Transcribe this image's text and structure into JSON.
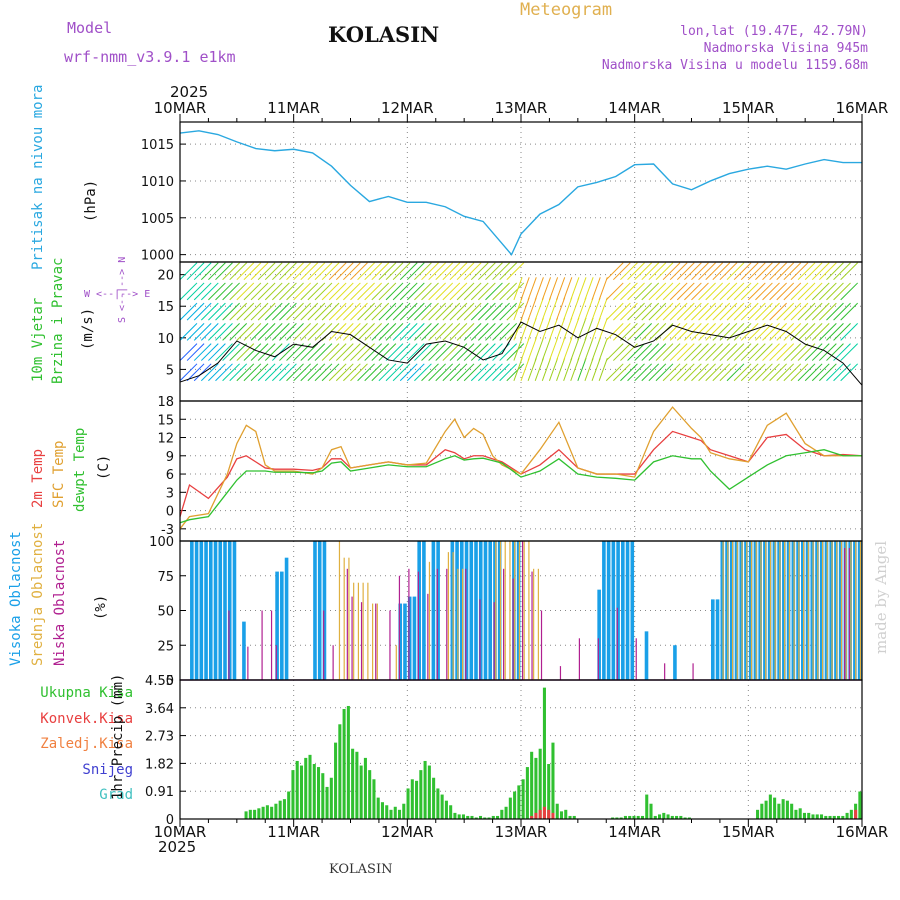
{
  "header": {
    "model_label": "Model",
    "model_name": "wrf-nmm_v3.9.1 e1km",
    "location": "KOLASIN",
    "product": "Meteogram",
    "lonlat": "lon,lat (19.47E, 42.79N)",
    "elevation": "Nadmorska Visina 945m",
    "model_elevation": "Nadmorska Visina u modelu 1159.68m"
  },
  "time_axis": {
    "year": "2025",
    "labels": [
      "10MAR",
      "11MAR",
      "12MAR",
      "13MAR",
      "14MAR",
      "15MAR",
      "16MAR"
    ]
  },
  "footer": {
    "station": "KOLASIN",
    "credit": "made by Angel"
  },
  "colors": {
    "pressure": "#2aa8e0",
    "temp2m": "#e84040",
    "sfc_temp": "#e0a030",
    "dewpt": "#30c030",
    "high_cloud": "#1aa0e8",
    "mid_cloud": "#e0b040",
    "low_cloud": "#b02090",
    "total_precip": "#30c030",
    "conv_precip": "#e84040"
  },
  "panels": {
    "pressure": {
      "label": "Pritisak na nivou mora",
      "unit": "(hPa)"
    },
    "wind": {
      "label1": "10m Vjetar",
      "label2": "Brzina i Pravac",
      "unit": "(m/s)",
      "compass_ns": "S <--|--> N",
      "compass_we": "W <--|--> E"
    },
    "temp": {
      "label1": "2m Temp",
      "label2": "SFC Temp",
      "label3": "dewpt Temp",
      "unit": "(C)"
    },
    "cloud": {
      "label1": "Visoka Oblacnost",
      "label2": "Srednja Oblacnost",
      "label3": "Niska Oblacnost",
      "unit": "(%)"
    },
    "precip": {
      "legend": [
        "Ukupna Kisa",
        "Konvek.Kisa",
        "Zaledj.Kisa",
        "Snijeg",
        "Grad"
      ],
      "legend_colors": [
        "#30c030",
        "#e84040",
        "#f08040",
        "#4040d0",
        "#40c0c0"
      ],
      "ylabel": "1hr Precip (mm)"
    }
  },
  "chart_data": [
    {
      "type": "line",
      "name": "pressure",
      "x_unit": "hours since 10MAR 00",
      "x": [
        0,
        4,
        8,
        12,
        16,
        20,
        24,
        28,
        32,
        36,
        40,
        44,
        48,
        52,
        56,
        60,
        64,
        68,
        70,
        72,
        76,
        80,
        84,
        88,
        92,
        96,
        100,
        104,
        108,
        112,
        116,
        120,
        124,
        128,
        132,
        136,
        140,
        144
      ],
      "values": [
        1016.5,
        1016.8,
        1016.3,
        1015.3,
        1014.4,
        1014.1,
        1014.3,
        1013.8,
        1012.0,
        1009.4,
        1007.2,
        1007.9,
        1007.1,
        1007.1,
        1006.5,
        1005.2,
        1004.5,
        1001.5,
        1000.0,
        1002.8,
        1005.5,
        1006.8,
        1009.2,
        1009.8,
        1010.6,
        1012.2,
        1012.3,
        1009.6,
        1008.8,
        1010.0,
        1011.0,
        1011.6,
        1012.0,
        1011.6,
        1012.3,
        1012.9,
        1012.5,
        1012.5
      ],
      "ylim": [
        999,
        1018
      ],
      "yticks": [
        1000,
        1005,
        1010,
        1015
      ]
    },
    {
      "type": "line",
      "name": "wind_speed",
      "x": [
        0,
        4,
        8,
        12,
        16,
        20,
        24,
        28,
        32,
        36,
        40,
        44,
        48,
        52,
        56,
        60,
        64,
        68,
        72,
        76,
        80,
        84,
        88,
        92,
        96,
        100,
        104,
        108,
        112,
        116,
        120,
        124,
        128,
        132,
        136,
        140,
        144
      ],
      "values": [
        3.0,
        4.0,
        6.0,
        9.5,
        8.0,
        7.0,
        9.0,
        8.5,
        11.0,
        10.5,
        8.5,
        6.5,
        6.0,
        9.0,
        9.5,
        8.5,
        6.5,
        7.5,
        12.5,
        11.0,
        12.0,
        10.0,
        11.5,
        10.5,
        8.5,
        9.5,
        12.0,
        11.0,
        10.5,
        10.0,
        11.0,
        12.0,
        11.0,
        9.0,
        8.0,
        6.0,
        2.5
      ],
      "ylim": [
        0,
        22
      ],
      "yticks": [
        5,
        10,
        15,
        20
      ]
    },
    {
      "type": "line",
      "name": "temperature",
      "x": [
        0,
        2,
        6,
        10,
        12,
        14,
        16,
        18,
        20,
        24,
        28,
        30,
        32,
        34,
        36,
        40,
        44,
        48,
        52,
        56,
        58,
        60,
        62,
        64,
        66,
        68,
        72,
        76,
        80,
        84,
        88,
        92,
        96,
        100,
        104,
        108,
        110,
        112,
        116,
        120,
        124,
        128,
        132,
        136,
        140,
        144
      ],
      "series": [
        {
          "name": "2m Temp",
          "values": [
            -1,
            4.2,
            2.0,
            5.5,
            8.5,
            9.0,
            8.0,
            7.0,
            6.8,
            6.8,
            6.6,
            7.0,
            8.5,
            8.5,
            7.0,
            7.5,
            8.0,
            7.5,
            7.5,
            10.0,
            9.5,
            8.5,
            9.0,
            9.0,
            8.5,
            8.0,
            6.0,
            7.5,
            10.0,
            7.0,
            6.0,
            6.0,
            6.0,
            10.0,
            13.0,
            12.0,
            11.5,
            10.0,
            9.0,
            8.0,
            12.0,
            12.5,
            10.0,
            9.0,
            9.2,
            9.0
          ]
        },
        {
          "name": "SFC Temp",
          "values": [
            -3,
            -1.0,
            -0.5,
            6.0,
            11.0,
            14.0,
            13.0,
            7.5,
            6.5,
            6.5,
            6.0,
            7.0,
            10.0,
            10.5,
            7.0,
            7.5,
            8.0,
            7.5,
            7.8,
            13.0,
            15.0,
            12.0,
            13.5,
            12.5,
            9.0,
            7.5,
            6.0,
            10.0,
            14.5,
            7.0,
            6.0,
            6.0,
            5.5,
            13.0,
            17.0,
            13.5,
            12.0,
            9.5,
            8.5,
            8.0,
            14.0,
            16.0,
            11.0,
            9.0,
            9.0,
            9.0
          ]
        },
        {
          "name": "dewpt Temp",
          "values": [
            -2,
            -1.5,
            -1.0,
            3.0,
            5.0,
            6.5,
            6.5,
            6.5,
            6.3,
            6.3,
            6.2,
            6.5,
            7.8,
            8.0,
            6.5,
            7.0,
            7.5,
            7.2,
            7.2,
            8.5,
            9.0,
            8.3,
            8.5,
            8.6,
            8.2,
            7.8,
            5.5,
            6.5,
            8.5,
            6.0,
            5.5,
            5.3,
            5.0,
            8.0,
            9.0,
            8.5,
            8.5,
            6.5,
            3.5,
            5.5,
            7.5,
            9.0,
            9.5,
            10.0,
            9.0,
            9.0
          ]
        }
      ],
      "ylim": [
        -5,
        18
      ],
      "yticks": [
        -3,
        0,
        3,
        6,
        9,
        12,
        15,
        18
      ]
    },
    {
      "type": "bar",
      "name": "cloud_cover",
      "ylim": [
        0,
        100
      ],
      "yticks": [
        0,
        25,
        50,
        75,
        100
      ],
      "series": [
        {
          "name": "Visoka Oblacnost",
          "segments": [
            [
              2,
              12,
              100
            ],
            [
              13,
              14,
              42
            ],
            [
              20,
              22,
              78
            ],
            [
              22,
              23,
              88
            ],
            [
              28,
              31,
              100
            ],
            [
              46,
              48,
              55
            ],
            [
              48,
              50,
              60
            ],
            [
              50,
              52,
              100
            ],
            [
              53,
              55,
              100
            ],
            [
              57,
              60,
              100
            ],
            [
              60,
              62,
              100
            ],
            [
              62,
              66,
              100
            ],
            [
              66,
              68,
              100
            ],
            [
              70,
              72,
              100
            ],
            [
              88,
              89,
              65
            ],
            [
              89,
              91,
              100
            ],
            [
              91,
              94,
              100
            ],
            [
              94,
              96,
              100
            ],
            [
              98,
              99,
              35
            ],
            [
              104,
              105,
              25
            ],
            [
              112,
              114,
              58
            ],
            [
              114,
              144,
              100
            ]
          ]
        },
        {
          "name": "Srednja Oblacnost",
          "segments": [
            [
              33,
              34,
              100
            ],
            [
              34,
              36,
              88
            ],
            [
              36,
              40,
              70
            ],
            [
              40,
              42,
              55
            ],
            [
              45,
              46,
              25
            ],
            [
              52,
              53,
              85
            ],
            [
              56,
              58,
              92
            ],
            [
              58,
              60,
              80
            ],
            [
              66,
              68,
              100
            ],
            [
              68,
              70,
              100
            ],
            [
              70,
              74,
              100
            ],
            [
              74,
              76,
              80
            ],
            [
              114,
              144,
              100
            ]
          ]
        },
        {
          "name": "Niska Oblacnost",
          "segments": [
            [
              10,
              11,
              50
            ],
            [
              14,
              15,
              24
            ],
            [
              17,
              18,
              50
            ],
            [
              19,
              20,
              50
            ],
            [
              20,
              21,
              25
            ],
            [
              30,
              31,
              50
            ],
            [
              32,
              33,
              25
            ],
            [
              35,
              36,
              80
            ],
            [
              36,
              37,
              60
            ],
            [
              38,
              39,
              56
            ],
            [
              41,
              42,
              55
            ],
            [
              44,
              45,
              50
            ],
            [
              46,
              47,
              75
            ],
            [
              48,
              49,
              80
            ],
            [
              50,
              51,
              78
            ],
            [
              52,
              53,
              62
            ],
            [
              54,
              55,
              80
            ],
            [
              56,
              57,
              80
            ],
            [
              60,
              61,
              80
            ],
            [
              63,
              64,
              58
            ],
            [
              66,
              67,
              56
            ],
            [
              68,
              69,
              80
            ],
            [
              70,
              71,
              73
            ],
            [
              72,
              73,
              100
            ],
            [
              74,
              75,
              78
            ],
            [
              76,
              77,
              50
            ],
            [
              80,
              81,
              10
            ],
            [
              84,
              85,
              30
            ],
            [
              88,
              89,
              30
            ],
            [
              92,
              93,
              52
            ],
            [
              96,
              97,
              30
            ],
            [
              102,
              103,
              12
            ],
            [
              108,
              109,
              12
            ],
            [
              140,
              142,
              95
            ]
          ]
        }
      ]
    },
    {
      "type": "bar",
      "name": "precipitation",
      "ylim": [
        0,
        4.55
      ],
      "yticks": [
        0,
        0.91,
        1.82,
        2.73,
        3.64,
        4.55
      ],
      "series": [
        {
          "name": "Ukupna Kisa",
          "values": [
            0,
            0,
            0,
            0,
            0,
            0,
            0,
            0,
            0,
            0,
            0,
            0,
            0,
            0,
            0,
            0.25,
            0.3,
            0.3,
            0.35,
            0.4,
            0.45,
            0.4,
            0.5,
            0.6,
            0.65,
            0.9,
            1.6,
            1.9,
            1.75,
            2.0,
            2.1,
            1.8,
            1.7,
            1.5,
            1.05,
            1.35,
            2.5,
            3.1,
            3.6,
            3.7,
            2.3,
            2.2,
            1.75,
            2.0,
            1.6,
            1.3,
            0.7,
            0.55,
            0.45,
            0.3,
            0.4,
            0.3,
            0.5,
            1.0,
            1.3,
            1.25,
            1.6,
            1.9,
            1.75,
            1.35,
            1.0,
            0.8,
            0.6,
            0.45,
            0.2,
            0.15,
            0.15,
            0.1,
            0.1,
            0.05,
            0.1,
            0.05,
            0.05,
            0.1,
            0.1,
            0.3,
            0.4,
            0.7,
            0.9,
            1.1,
            1.3,
            1.7,
            2.2,
            2.0,
            2.3,
            4.3,
            1.8,
            2.5,
            0.5,
            0.25,
            0.3,
            0.1,
            0.1,
            0,
            0,
            0,
            0,
            0,
            0,
            0,
            0,
            0.05,
            0.05,
            0.05,
            0.1,
            0.1,
            0.1,
            0.1,
            0.1,
            0.8,
            0.5,
            0.1,
            0.15,
            0.2,
            0.15,
            0.1,
            0.1,
            0.1,
            0.05,
            0.05,
            0,
            0,
            0,
            0,
            0,
            0,
            0,
            0,
            0,
            0,
            0,
            0,
            0,
            0,
            0,
            0.3,
            0.5,
            0.6,
            0.8,
            0.7,
            0.5,
            0.65,
            0.6,
            0.5,
            0.3,
            0.35,
            0.2,
            0.2,
            0.15,
            0.15,
            0.15,
            0.1,
            0.1,
            0.1,
            0.1,
            0.1,
            0.2,
            0.3,
            0.5,
            0.9
          ]
        },
        {
          "name": "Konvek.Kisa",
          "values": [
            0,
            0,
            0,
            0,
            0,
            0,
            0,
            0,
            0,
            0,
            0,
            0,
            0,
            0,
            0,
            0,
            0,
            0,
            0,
            0,
            0,
            0,
            0,
            0,
            0,
            0,
            0,
            0,
            0,
            0,
            0,
            0,
            0,
            0,
            0,
            0,
            0,
            0,
            0,
            0,
            0,
            0,
            0,
            0,
            0,
            0,
            0,
            0,
            0,
            0,
            0,
            0,
            0,
            0,
            0,
            0,
            0,
            0,
            0,
            0,
            0,
            0,
            0,
            0,
            0,
            0,
            0,
            0,
            0,
            0,
            0,
            0,
            0,
            0,
            0,
            0,
            0,
            0,
            0,
            0,
            0,
            0,
            0.1,
            0.2,
            0.3,
            0.4,
            0.3,
            0.2,
            0,
            0,
            0,
            0,
            0,
            0,
            0,
            0,
            0,
            0,
            0,
            0,
            0,
            0,
            0,
            0,
            0,
            0,
            0,
            0,
            0,
            0,
            0,
            0,
            0,
            0,
            0,
            0,
            0,
            0,
            0,
            0,
            0,
            0,
            0,
            0,
            0,
            0,
            0,
            0,
            0,
            0,
            0,
            0,
            0,
            0,
            0,
            0,
            0,
            0,
            0,
            0,
            0,
            0,
            0,
            0,
            0,
            0,
            0,
            0,
            0,
            0,
            0,
            0,
            0,
            0,
            0,
            0,
            0,
            0,
            0.3
          ]
        }
      ]
    }
  ]
}
